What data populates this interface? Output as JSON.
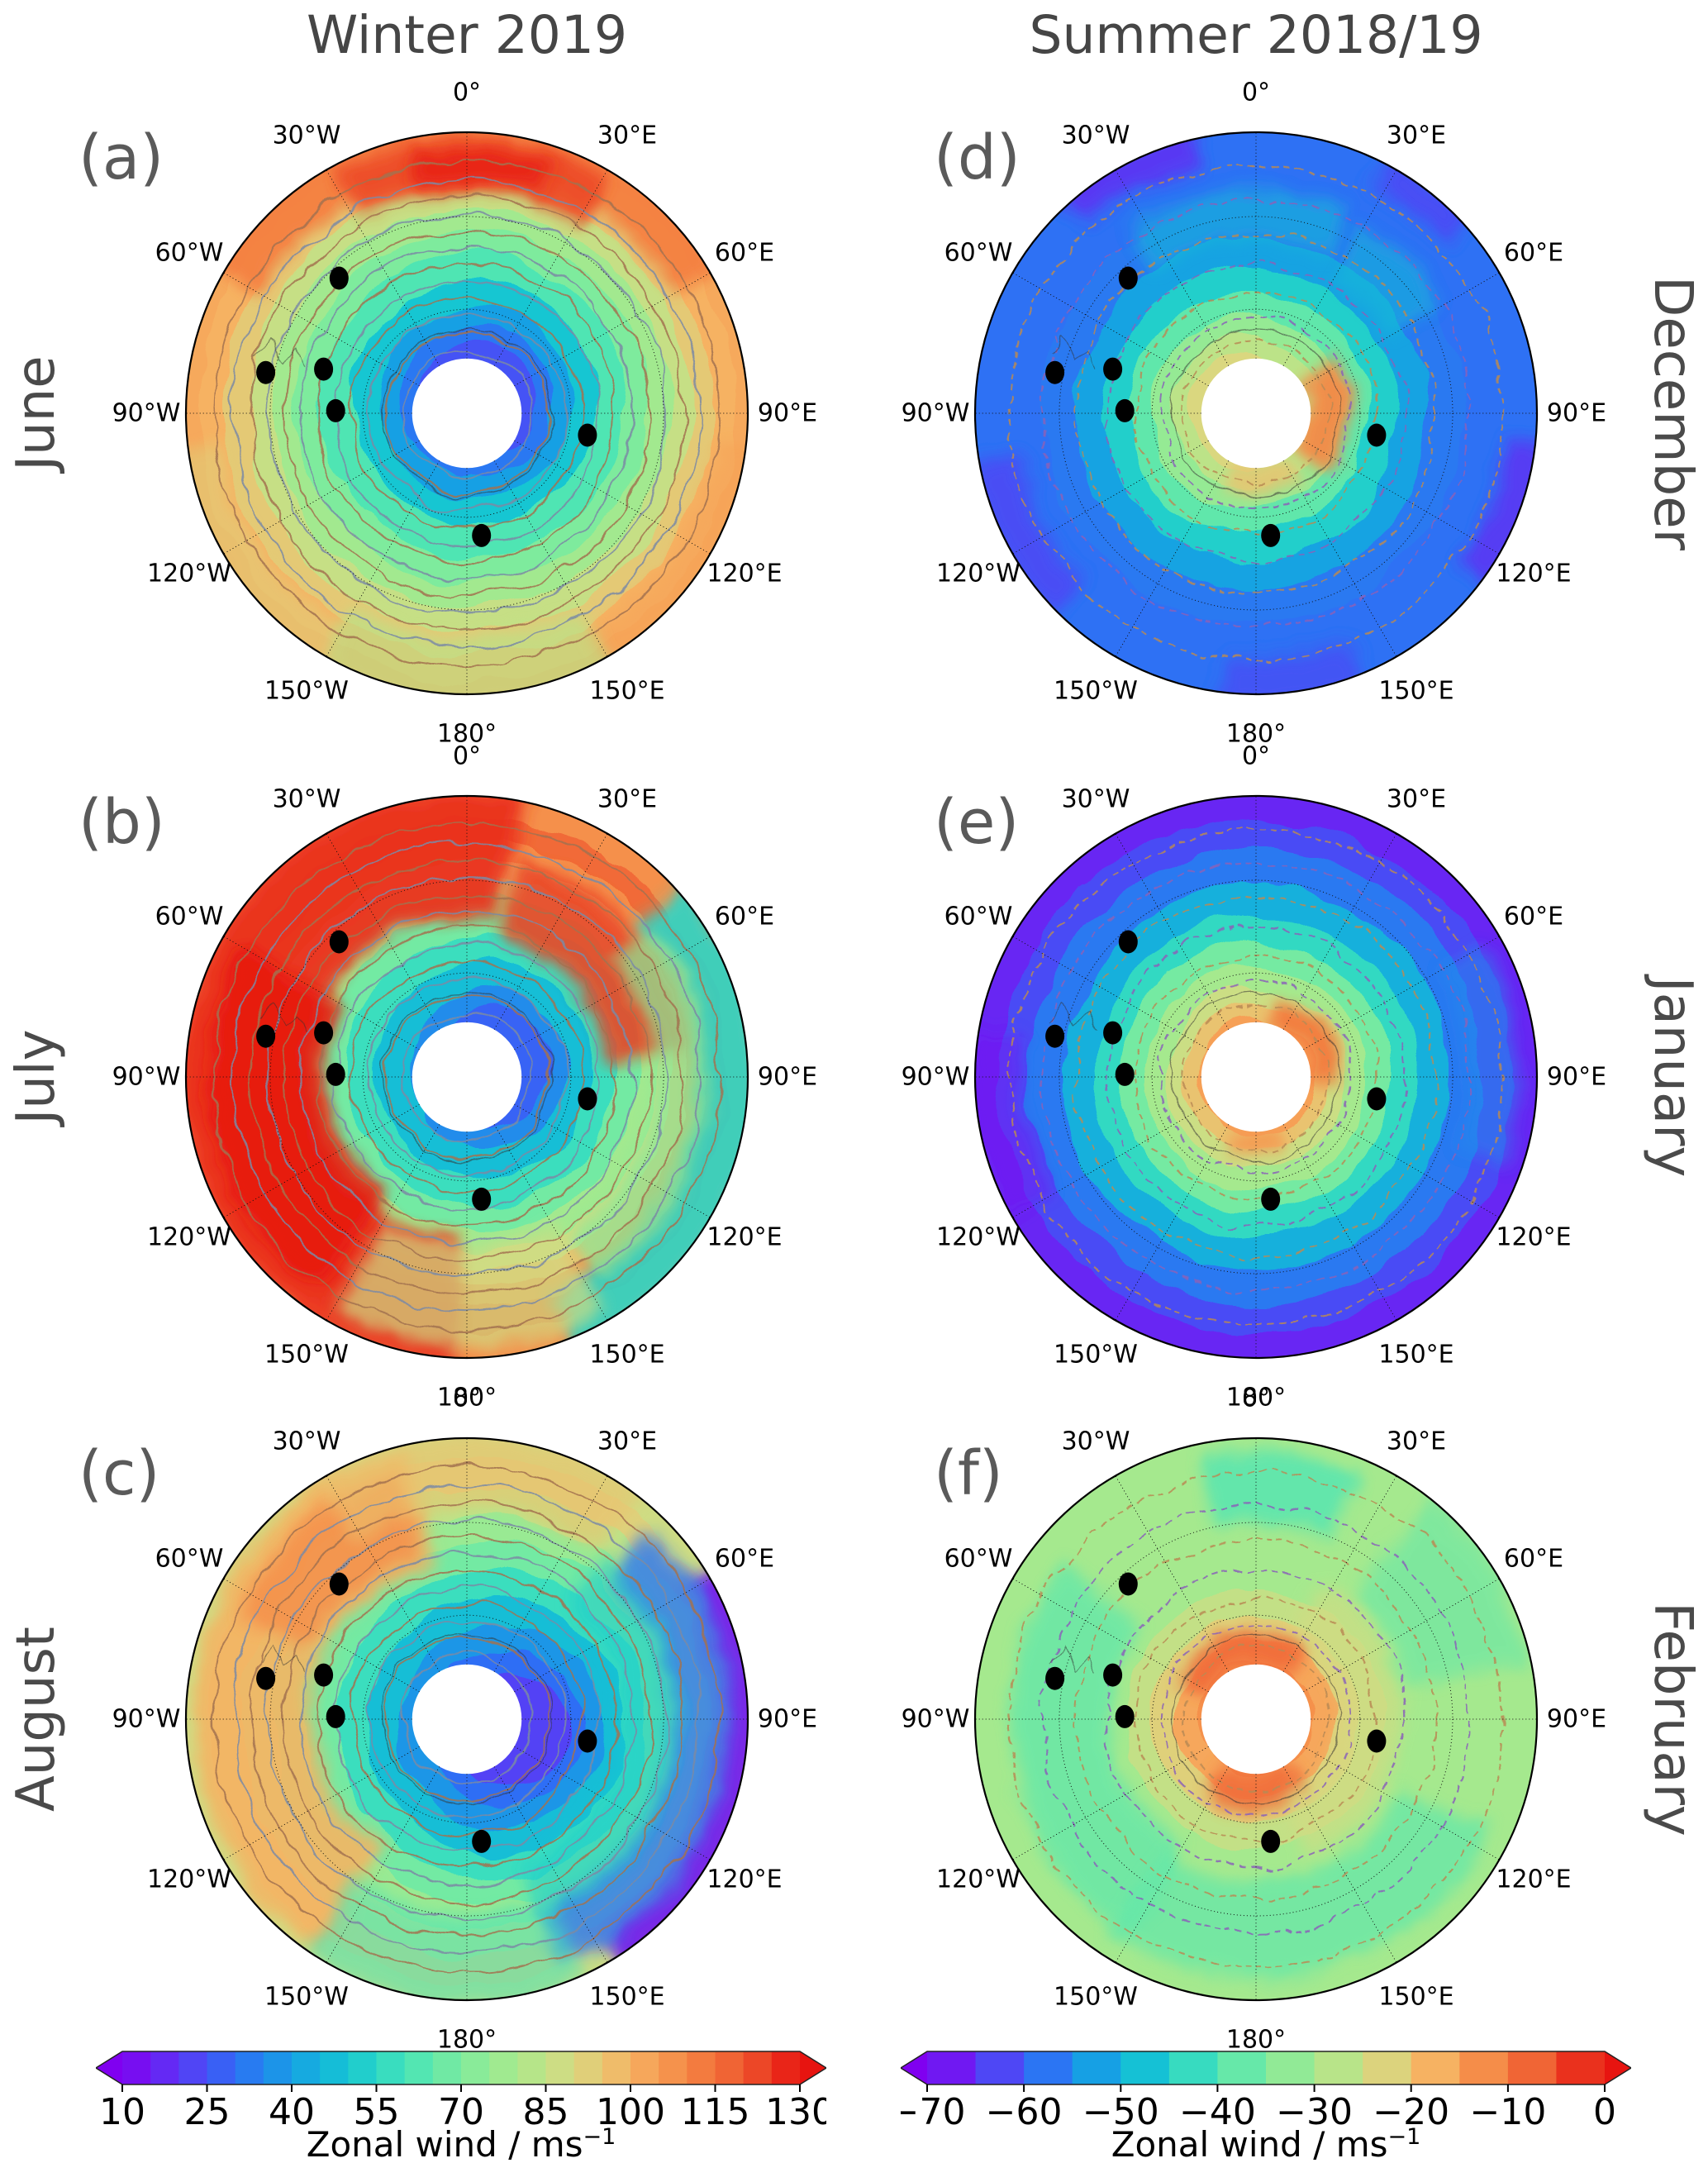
{
  "figure": {
    "column_titles": [
      "Winter 2019",
      "Summer 2018/19"
    ],
    "row_labels_left": [
      "June",
      "July",
      "August"
    ],
    "row_labels_right": [
      "December",
      "January",
      "February"
    ],
    "panel_letters": [
      "(a)",
      "(b)",
      "(c)",
      "(d)",
      "(e)",
      "(f)"
    ],
    "longitude_labels": [
      "0°",
      "30°E",
      "60°E",
      "90°E",
      "120°E",
      "150°E",
      "180°",
      "150°W",
      "120°W",
      "90°W",
      "60°W",
      "30°W"
    ]
  },
  "chart_data": {
    "type": "heatmap",
    "subtype": "polar_stereographic_zonal_wind_maps",
    "layout": "2 columns (Winter 2019: June/July/August; Summer 2018/19: December/January/February), 6 polar maps with white polar hole, station dots, graticule every 30 degrees longitude",
    "colormap_anchors": [
      "#8000f0",
      "#5b37f5",
      "#2e6ef5",
      "#16a0e4",
      "#15c6d2",
      "#45e4b9",
      "#7eeb9d",
      "#abe98c",
      "#d8d981",
      "#f6b262",
      "#f58745",
      "#ee582e",
      "#e71410"
    ],
    "graticule": {
      "spoke_step_deg": 30,
      "lat_circle_radii": [
        0.37,
        0.7
      ],
      "hole_radius": 0.195
    },
    "station_dots": [
      [
        -0.455,
        -0.481
      ],
      [
        -0.716,
        -0.145
      ],
      [
        -0.51,
        -0.157
      ],
      [
        -0.467,
        -0.009
      ],
      [
        0.429,
        0.078
      ],
      [
        0.052,
        0.435
      ]
    ],
    "colorbar_left": {
      "vmin": 10,
      "vmax": 130,
      "step": 5,
      "ticks": [
        10,
        25,
        40,
        55,
        70,
        85,
        100,
        115,
        130
      ],
      "tick_labels": [
        "10",
        "25",
        "40",
        "55",
        "70",
        "85",
        "100",
        "115",
        "130"
      ],
      "label_base": "Zonal wind / ms",
      "label_sup": "−1",
      "extend": "both"
    },
    "colorbar_right": {
      "vmin": -70,
      "vmax": 0,
      "step": 5,
      "ticks": [
        -70,
        -60,
        -50,
        -40,
        -30,
        -20,
        -10,
        0
      ],
      "tick_labels": [
        "−70",
        "−60",
        "−50",
        "−40",
        "−30",
        "−20",
        "−10",
        "0"
      ],
      "label_base": "Zonal wind / ms",
      "label_sup": "−1",
      "extend": "both"
    },
    "panels": [
      {
        "id": "a",
        "letter": "(a)",
        "month": "June",
        "scale": "left",
        "seed": 3,
        "focus": [
          0.02,
          -0.03
        ],
        "contour_style": "solid",
        "bands": [
          [
            0.2,
            25
          ],
          [
            0.26,
            32
          ],
          [
            0.33,
            40
          ],
          [
            0.42,
            50
          ],
          [
            0.52,
            62
          ],
          [
            0.6,
            70
          ],
          [
            0.68,
            78
          ],
          [
            0.76,
            86
          ],
          [
            0.84,
            94
          ],
          [
            0.92,
            100
          ],
          [
            1.0,
            102
          ]
        ],
        "overlays": [
          {
            "a0": -60,
            "a1": 60,
            "r0": 0.85,
            "r1": 1.05,
            "v": 112,
            "op": 0.9
          },
          {
            "a0": -28,
            "a1": 34,
            "r0": 0.79,
            "r1": 0.98,
            "v": 122,
            "op": 0.9
          },
          {
            "a0": -12,
            "a1": 20,
            "r0": 0.83,
            "r1": 0.94,
            "v": 128,
            "op": 0.9
          },
          {
            "a0": 96,
            "a1": 152,
            "r0": 0.9,
            "r1": 1.05,
            "v": 104,
            "op": 0.55
          },
          {
            "a0": -152,
            "a1": -96,
            "r0": 0.88,
            "r1": 1.05,
            "v": 92,
            "op": 0.55
          },
          {
            "a0": 150,
            "a1": 212,
            "r0": 0.8,
            "r1": 1.05,
            "v": 82,
            "op": 0.6
          }
        ],
        "contour_radii": [
          0.23,
          0.29,
          0.35,
          0.41,
          0.47,
          0.53,
          0.59,
          0.65,
          0.71,
          0.77,
          0.83,
          0.9
        ]
      },
      {
        "id": "b",
        "letter": "(b)",
        "month": "July",
        "scale": "left",
        "seed": 7,
        "focus": [
          0.05,
          -0.02
        ],
        "contour_style": "solid",
        "bands": [
          [
            0.2,
            28
          ],
          [
            0.27,
            36
          ],
          [
            0.37,
            48
          ],
          [
            0.46,
            58
          ],
          [
            0.54,
            68
          ],
          [
            0.61,
            78
          ],
          [
            0.67,
            88
          ],
          [
            0.73,
            98
          ],
          [
            0.8,
            108
          ],
          [
            0.88,
            116
          ],
          [
            1.0,
            108
          ]
        ],
        "overlays": [
          {
            "a0": -178,
            "a1": 12,
            "r0": 0.57,
            "r1": 1.03,
            "v": 126,
            "op": 0.92
          },
          {
            "a0": -145,
            "a1": -58,
            "r0": 0.5,
            "r1": 0.92,
            "v": 130,
            "op": 0.85
          },
          {
            "a0": 14,
            "a1": 86,
            "r0": 0.5,
            "r1": 0.8,
            "v": 124,
            "op": 0.85
          },
          {
            "a0": 48,
            "a1": 162,
            "r0": 0.82,
            "r1": 1.05,
            "v": 55,
            "op": 0.9
          },
          {
            "a0": 52,
            "a1": 150,
            "r0": 0.66,
            "r1": 0.86,
            "v": 72,
            "op": 0.7
          },
          {
            "a0": 150,
            "a1": 212,
            "r0": 0.6,
            "r1": 0.96,
            "v": 88,
            "op": 0.7
          }
        ],
        "contour_radii": [
          0.23,
          0.29,
          0.35,
          0.41,
          0.47,
          0.53,
          0.59,
          0.65,
          0.71,
          0.77,
          0.83,
          0.9
        ]
      },
      {
        "id": "c",
        "letter": "(c)",
        "month": "August",
        "scale": "left",
        "seed": 11,
        "focus": [
          0.09,
          0.02
        ],
        "contour_style": "solid",
        "bands": [
          [
            0.2,
            22
          ],
          [
            0.27,
            30
          ],
          [
            0.35,
            38
          ],
          [
            0.44,
            48
          ],
          [
            0.53,
            58
          ],
          [
            0.62,
            68
          ],
          [
            0.71,
            76
          ],
          [
            0.8,
            84
          ],
          [
            0.9,
            92
          ],
          [
            1.0,
            88
          ]
        ],
        "overlays": [
          {
            "a0": -148,
            "a1": -12,
            "r0": 0.55,
            "r1": 0.98,
            "v": 100,
            "op": 0.85
          },
          {
            "a0": -66,
            "a1": -16,
            "r0": 0.6,
            "r1": 0.9,
            "v": 108,
            "op": 0.85
          },
          {
            "a0": -32,
            "a1": 42,
            "r0": 0.76,
            "r1": 1.02,
            "v": 96,
            "op": 0.6
          },
          {
            "a0": 58,
            "a1": 152,
            "r0": 0.9,
            "r1": 1.06,
            "v": 14,
            "op": 0.9
          },
          {
            "a0": 45,
            "a1": 160,
            "r0": 0.72,
            "r1": 0.94,
            "v": 32,
            "op": 0.8
          },
          {
            "a0": 40,
            "a1": 160,
            "r0": 0.55,
            "r1": 0.76,
            "v": 52,
            "op": 0.55
          },
          {
            "a0": 155,
            "a1": 215,
            "r0": 0.7,
            "r1": 1.02,
            "v": 60,
            "op": 0.55
          }
        ],
        "contour_radii": [
          0.23,
          0.29,
          0.35,
          0.41,
          0.47,
          0.53,
          0.59,
          0.65,
          0.71,
          0.77,
          0.83,
          0.9
        ]
      },
      {
        "id": "d",
        "letter": "(d)",
        "month": "December",
        "scale": "right",
        "seed": 5,
        "focus": [
          -0.02,
          0.0
        ],
        "contour_style": "dashed",
        "bands": [
          [
            0.2,
            -23
          ],
          [
            0.26,
            -27
          ],
          [
            0.33,
            -32
          ],
          [
            0.41,
            -38
          ],
          [
            0.5,
            -45
          ],
          [
            0.6,
            -52
          ],
          [
            0.72,
            -57
          ],
          [
            1.0,
            -58
          ]
        ],
        "overlays": [
          {
            "a0": 55,
            "a1": 130,
            "r0": 0.19,
            "r1": 0.34,
            "v": -12,
            "op": 0.95
          },
          {
            "a0": 145,
            "a1": 205,
            "r0": 0.19,
            "r1": 0.3,
            "v": -20,
            "op": 0.8
          },
          {
            "a0": -35,
            "a1": 25,
            "r0": 0.62,
            "r1": 0.8,
            "v": -48,
            "op": 0.55
          },
          {
            "a0": 30,
            "a1": 62,
            "r0": 0.55,
            "r1": 0.76,
            "v": -48,
            "op": 0.5
          },
          {
            "a0": -42,
            "a1": -12,
            "r0": 0.9,
            "r1": 1.05,
            "v": -66,
            "op": 0.75
          },
          {
            "a0": 96,
            "a1": 126,
            "r0": 0.9,
            "r1": 1.05,
            "v": -66,
            "op": 0.7
          },
          {
            "a0": -135,
            "a1": -100,
            "r0": 0.86,
            "r1": 1.03,
            "v": -64,
            "op": 0.6
          },
          {
            "a0": 28,
            "a1": 52,
            "r0": 0.9,
            "r1": 1.04,
            "v": -64,
            "op": 0.6
          },
          {
            "a0": 158,
            "a1": 192,
            "r0": 0.88,
            "r1": 1.04,
            "v": -64,
            "op": 0.5
          }
        ],
        "contour_radii": [
          0.26,
          0.34,
          0.43,
          0.53,
          0.64,
          0.76,
          0.88
        ]
      },
      {
        "id": "e",
        "letter": "(e)",
        "month": "January",
        "scale": "right",
        "seed": 9,
        "focus": [
          0.0,
          0.0
        ],
        "contour_style": "dashed",
        "bands": [
          [
            0.2,
            -15
          ],
          [
            0.25,
            -20
          ],
          [
            0.31,
            -25
          ],
          [
            0.38,
            -30
          ],
          [
            0.46,
            -36
          ],
          [
            0.55,
            -43
          ],
          [
            0.66,
            -50
          ],
          [
            0.78,
            -57
          ],
          [
            0.88,
            -62
          ],
          [
            1.0,
            -66
          ]
        ],
        "overlays": [
          {
            "a0": 15,
            "a1": 95,
            "r0": 0.19,
            "r1": 0.3,
            "v": -10,
            "op": 0.95
          },
          {
            "a0": 155,
            "a1": 200,
            "r0": 0.19,
            "r1": 0.28,
            "v": -14,
            "op": 0.85
          },
          {
            "a0": 60,
            "a1": 110,
            "r0": 0.76,
            "r1": 0.94,
            "v": -55,
            "op": 0.5
          },
          {
            "a0": -120,
            "a1": -80,
            "r0": 0.84,
            "r1": 1.02,
            "v": -68,
            "op": 0.5
          }
        ],
        "contour_radii": [
          0.26,
          0.34,
          0.43,
          0.53,
          0.64,
          0.76,
          0.88
        ]
      },
      {
        "id": "f",
        "letter": "(f)",
        "month": "February",
        "scale": "right",
        "seed": 13,
        "focus": [
          0.0,
          0.0
        ],
        "contour_style": "dashed",
        "bands": [
          [
            0.2,
            -13
          ],
          [
            0.27,
            -16
          ],
          [
            0.35,
            -22
          ],
          [
            0.44,
            -26
          ],
          [
            0.55,
            -30
          ],
          [
            1.0,
            -30
          ]
        ],
        "overlays": [
          {
            "a0": -65,
            "a1": 35,
            "r0": 0.19,
            "r1": 0.31,
            "v": -8,
            "op": 0.9
          },
          {
            "a0": 145,
            "a1": 215,
            "r0": 0.19,
            "r1": 0.33,
            "v": -8,
            "op": 0.85
          },
          {
            "a0": 25,
            "a1": 160,
            "r0": 0.3,
            "r1": 0.52,
            "v": -24,
            "op": 0.65
          },
          {
            "a0": -150,
            "a1": -50,
            "r0": 0.52,
            "r1": 0.88,
            "v": -38,
            "op": 0.75
          },
          {
            "a0": 115,
            "a1": 215,
            "r0": 0.58,
            "r1": 0.92,
            "v": -38,
            "op": 0.7
          },
          {
            "a0": -12,
            "a1": 25,
            "r0": 0.7,
            "r1": 0.95,
            "v": -40,
            "op": 0.75
          },
          {
            "a0": 38,
            "a1": 80,
            "r0": 0.55,
            "r1": 1.0,
            "v": -38,
            "op": 0.55
          }
        ],
        "contour_radii": [
          0.26,
          0.34,
          0.43,
          0.53,
          0.64,
          0.76,
          0.88
        ]
      }
    ]
  }
}
